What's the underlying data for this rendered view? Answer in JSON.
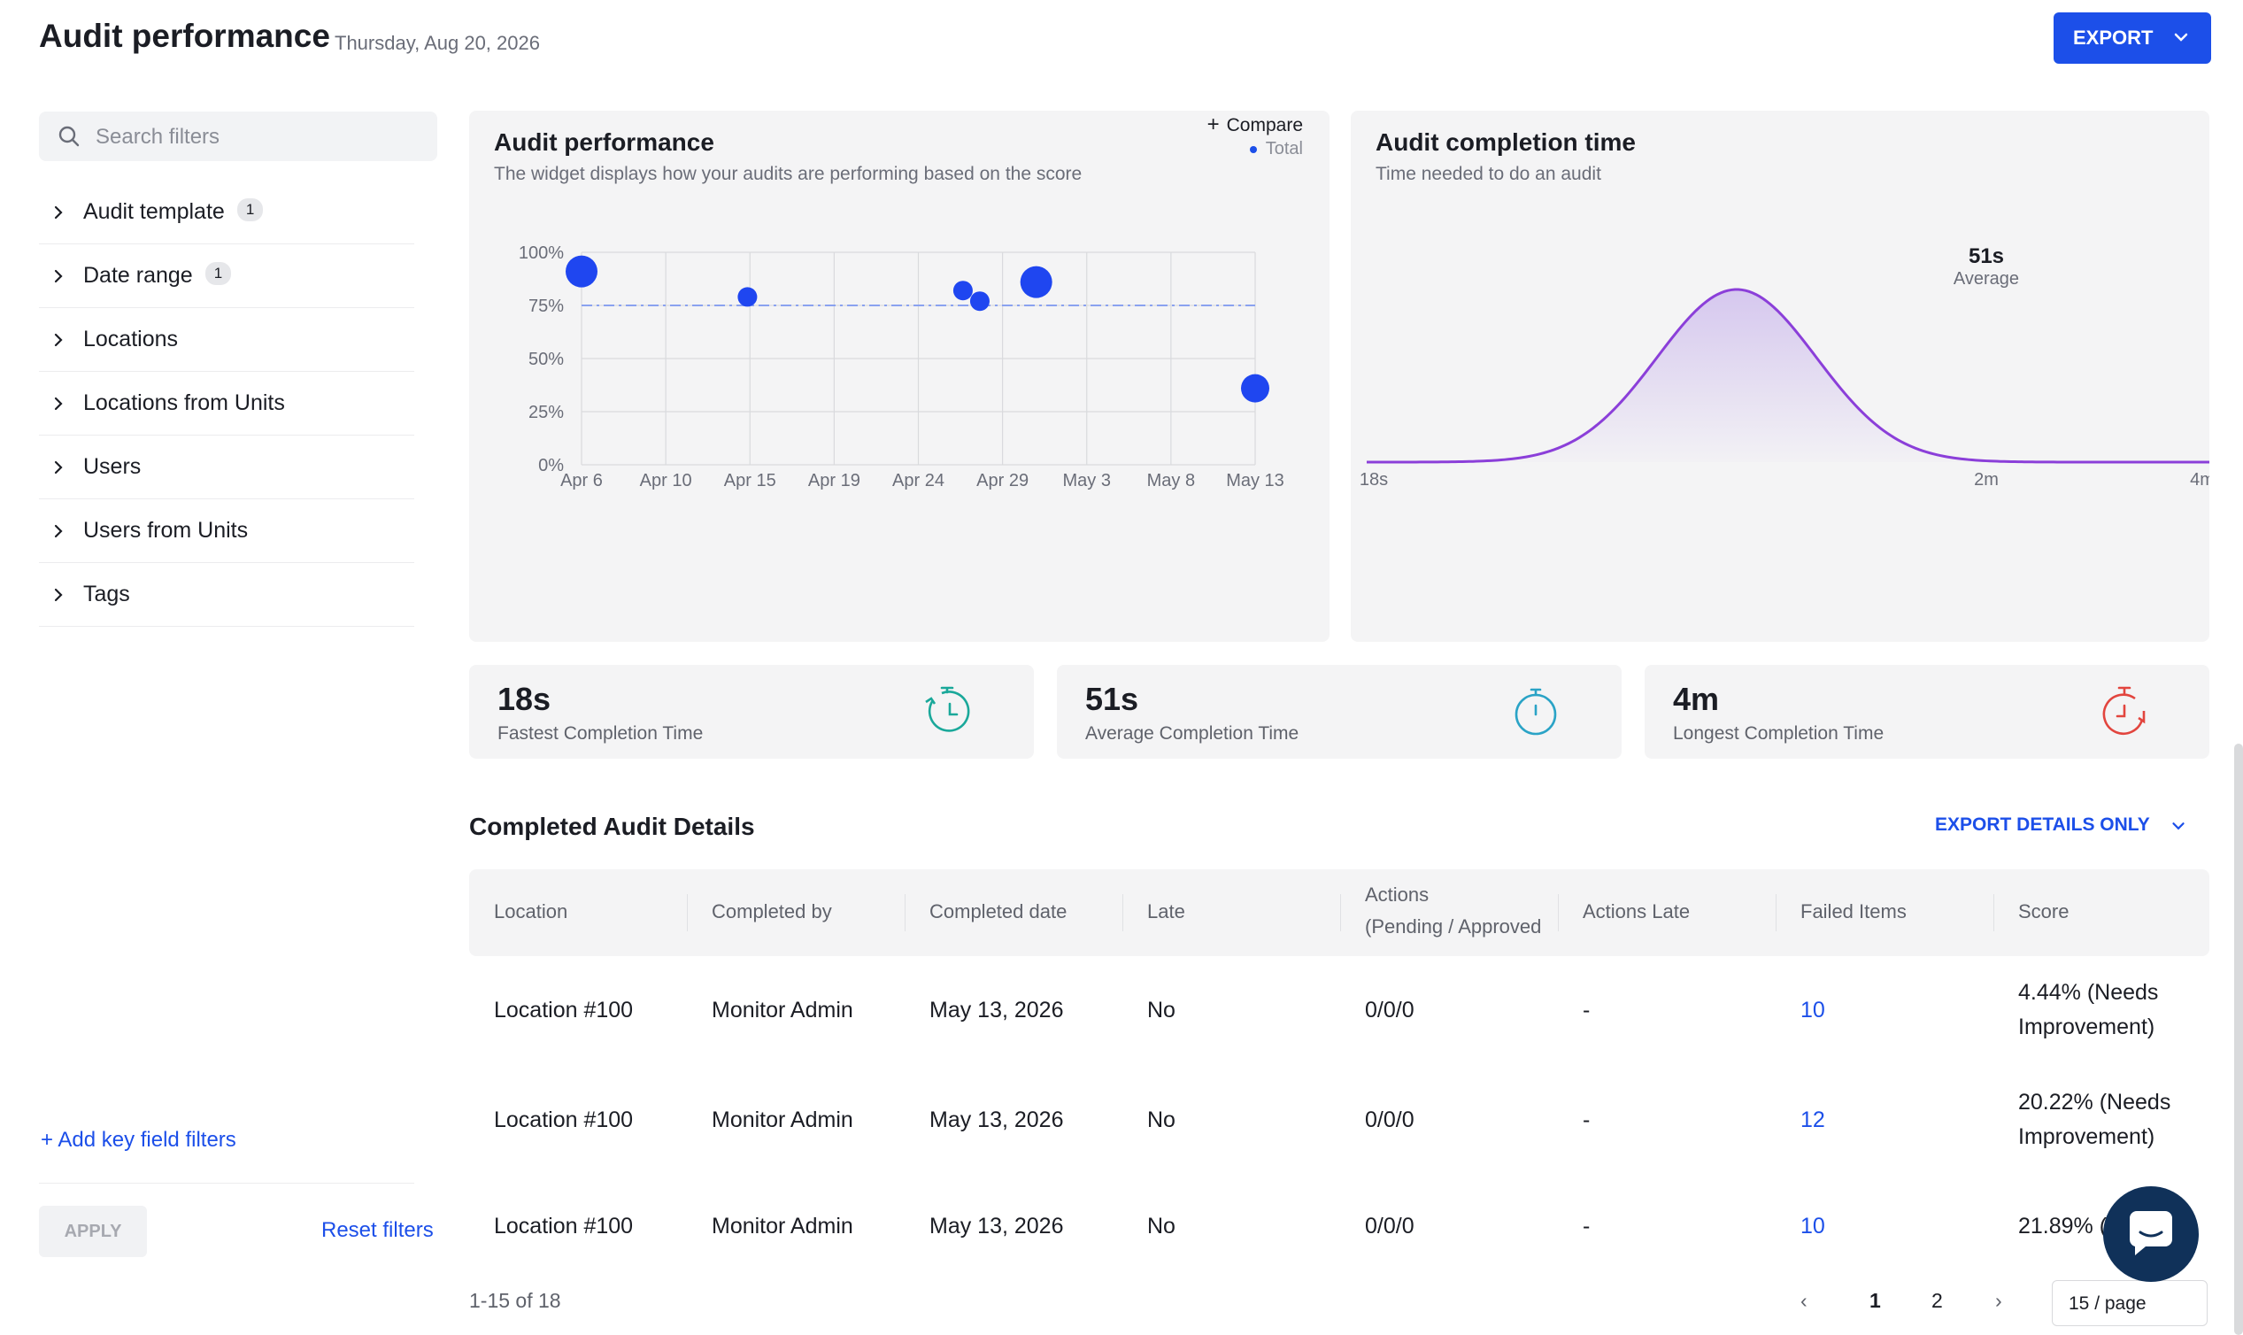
{
  "header": {
    "title": "Audit performance",
    "date": "Thursday, Aug 20, 2026",
    "export_label": "EXPORT"
  },
  "sidebar": {
    "search_placeholder": "Search filters",
    "filters": [
      {
        "label": "Audit template",
        "badge": "1"
      },
      {
        "label": "Date range",
        "badge": "1"
      },
      {
        "label": "Locations",
        "badge": ""
      },
      {
        "label": "Locations from Units",
        "badge": ""
      },
      {
        "label": "Users",
        "badge": ""
      },
      {
        "label": "Users from Units",
        "badge": ""
      },
      {
        "label": "Tags",
        "badge": ""
      }
    ],
    "add_key_field_filters": "+ Add key field filters",
    "apply_label": "APPLY",
    "reset_label": "Reset filters"
  },
  "perf_widget": {
    "title": "Audit performance",
    "subtitle": "The widget displays how your audits are performing based on the score",
    "compare_label": "Compare",
    "legend_total": "Total"
  },
  "completion_widget": {
    "title": "Audit completion time",
    "subtitle": "Time needed to do an audit",
    "peak_value": "51s",
    "peak_label": "Average"
  },
  "chart_data": [
    {
      "type": "scatter",
      "x_tick_labels": [
        "Apr 6",
        "Apr 10",
        "Apr 15",
        "Apr 19",
        "Apr 24",
        "Apr 29",
        "May 3",
        "May 8",
        "May 13"
      ],
      "y_tick_labels": [
        "100%",
        "75%",
        "50%",
        "25%",
        "0%"
      ],
      "ylim": [
        0,
        100
      ],
      "reference_line": 75,
      "series": [
        {
          "name": "Total",
          "color": "#1f46f0",
          "points": [
            {
              "x": 0,
              "y": 91,
              "size": "large"
            },
            {
              "x": 1.97,
              "y": 79,
              "size": "small"
            },
            {
              "x": 4.53,
              "y": 82,
              "size": "small"
            },
            {
              "x": 4.73,
              "y": 77,
              "size": "small"
            },
            {
              "x": 5.4,
              "y": 86,
              "size": "large"
            },
            {
              "x": 8,
              "y": 36,
              "size": "medium"
            }
          ]
        }
      ]
    },
    {
      "type": "area",
      "x_tick_labels": [
        "18s",
        "2m",
        "4m"
      ],
      "curve_color": "#8b3fd9",
      "mean_label": "51s"
    }
  ],
  "stats": [
    {
      "value": "18s",
      "label": "Fastest Completion Time",
      "icon": "timer-fast-icon",
      "color": "#1aa89a"
    },
    {
      "value": "51s",
      "label": "Average Completion Time",
      "icon": "stopwatch-icon",
      "color": "#2aa3c6"
    },
    {
      "value": "4m",
      "label": "Longest Completion Time",
      "icon": "timer-slow-icon",
      "color": "#e2453e"
    }
  ],
  "table": {
    "title": "Completed Audit Details",
    "export_details_label": "EXPORT DETAILS ONLY",
    "columns": [
      "Location",
      "Completed by",
      "Completed date",
      "Late",
      "Actions\n(Pending / Approved",
      "Actions Late",
      "Failed Items",
      "Score"
    ],
    "rows": [
      [
        "Location #100",
        "Monitor Admin",
        "May 13, 2026",
        "No",
        "0/0/0",
        "-",
        "10",
        "4.44% (Needs\nImprovement)"
      ],
      [
        "Location #100",
        "Monitor Admin",
        "May 13, 2026",
        "No",
        "0/0/0",
        "-",
        "12",
        "20.22% (Needs\nImprovement)"
      ],
      [
        "Location #100",
        "Monitor Admin",
        "May 13, 2026",
        "No",
        "0/0/0",
        "-",
        "10",
        "21.89% (N"
      ]
    ]
  },
  "pagination": {
    "range_text": "1-15 of 18",
    "pages": [
      "1",
      "2"
    ],
    "per_page": "15 / page"
  }
}
